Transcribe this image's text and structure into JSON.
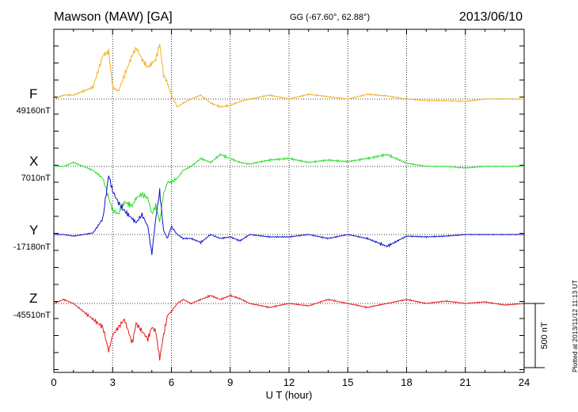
{
  "header": {
    "title": "Mawson (MAW)  [GA]",
    "coords": "GG (-67.60°,  62.88°)",
    "date": "2013/06/10"
  },
  "footer": {
    "plotted": "Plotted at 2013/11/12 11:13 UT"
  },
  "colors": {
    "F": "#f2b01e",
    "X": "#22dd22",
    "Y": "#1010cc",
    "Z": "#e81818",
    "grid": "#000000"
  },
  "chart_data": {
    "type": "line",
    "xlabel": "U T (hour)",
    "xlim": [
      0,
      24
    ],
    "x_ticks": [
      "0",
      "3",
      "6",
      "9",
      "12",
      "15",
      "18",
      "21",
      "24"
    ],
    "scale_bar": "500 nT",
    "series": [
      {
        "name": "F",
        "baseline_label": "49160nT",
        "color": "#f2b01e",
        "x": [
          0,
          0.5,
          1,
          1.5,
          2,
          2.5,
          2.8,
          3,
          3.3,
          3.6,
          4,
          4.2,
          4.5,
          4.8,
          5,
          5.2,
          5.4,
          5.6,
          5.8,
          6,
          6.3,
          6.6,
          7,
          7.5,
          8,
          8.5,
          9,
          9.5,
          10,
          11,
          12,
          13,
          14,
          15,
          16,
          17,
          18,
          19,
          20,
          21,
          22,
          23,
          24
        ],
        "y": [
          0,
          5,
          5,
          10,
          15,
          55,
          60,
          15,
          10,
          30,
          55,
          65,
          50,
          40,
          45,
          50,
          70,
          30,
          20,
          5,
          -10,
          -5,
          0,
          5,
          -5,
          -10,
          -8,
          -3,
          0,
          5,
          0,
          6,
          3,
          0,
          6,
          4,
          0,
          -2,
          -2,
          -3,
          0,
          0,
          0
        ]
      },
      {
        "name": "X",
        "baseline_label": "7010nT",
        "color": "#22dd22",
        "x": [
          0,
          0.5,
          1,
          1.5,
          2,
          2.5,
          2.8,
          3,
          3.3,
          3.6,
          4,
          4.2,
          4.5,
          4.8,
          5,
          5.2,
          5.4,
          5.6,
          5.8,
          6,
          6.3,
          6.6,
          7,
          7.5,
          8,
          8.5,
          9,
          9.5,
          10,
          11,
          12,
          13,
          14,
          15,
          16,
          17,
          18,
          19,
          20,
          21,
          22,
          23,
          24
        ],
        "y": [
          0,
          0,
          5,
          0,
          -5,
          -15,
          -40,
          -55,
          -60,
          -45,
          -50,
          -40,
          -35,
          -40,
          -60,
          -50,
          -70,
          -35,
          -20,
          -20,
          -15,
          -5,
          0,
          10,
          5,
          15,
          10,
          5,
          3,
          8,
          10,
          5,
          8,
          6,
          10,
          15,
          4,
          0,
          0,
          -2,
          0,
          0,
          0
        ]
      },
      {
        "name": "Y",
        "baseline_label": "-17180nT",
        "color": "#1010cc",
        "x": [
          0,
          0.5,
          1,
          1.5,
          2,
          2.5,
          2.8,
          3,
          3.3,
          3.6,
          4,
          4.2,
          4.5,
          4.8,
          5,
          5.2,
          5.4,
          5.6,
          5.8,
          6,
          6.3,
          6.6,
          7,
          7.5,
          8,
          8.5,
          9,
          9.5,
          10,
          11,
          12,
          13,
          14,
          15,
          16,
          17,
          18,
          19,
          20,
          21,
          22,
          23,
          24
        ],
        "y": [
          0,
          0,
          -2,
          0,
          2,
          20,
          75,
          55,
          40,
          30,
          20,
          15,
          25,
          10,
          -25,
          20,
          55,
          5,
          -5,
          10,
          0,
          -5,
          -5,
          -10,
          0,
          -5,
          -3,
          -8,
          0,
          -3,
          -3,
          0,
          -5,
          0,
          -5,
          -15,
          -2,
          -3,
          -2,
          0,
          0,
          0,
          0
        ]
      },
      {
        "name": "Z",
        "baseline_label": "-45510nT",
        "color": "#e81818",
        "x": [
          0,
          0.5,
          1,
          1.5,
          2,
          2.5,
          2.8,
          3,
          3.3,
          3.6,
          4,
          4.2,
          4.5,
          4.8,
          5,
          5.2,
          5.4,
          5.6,
          5.8,
          6,
          6.3,
          6.6,
          7,
          7.5,
          8,
          8.5,
          9,
          9.5,
          10,
          11,
          12,
          13,
          14,
          15,
          16,
          17,
          18,
          19,
          20,
          21,
          22,
          23,
          24
        ],
        "y": [
          0,
          5,
          0,
          -10,
          -20,
          -30,
          -60,
          -40,
          -30,
          -20,
          -50,
          -25,
          -35,
          -45,
          -30,
          -35,
          -70,
          -40,
          -15,
          -10,
          0,
          5,
          0,
          5,
          10,
          5,
          10,
          6,
          0,
          -5,
          0,
          -3,
          5,
          0,
          -5,
          0,
          5,
          0,
          3,
          0,
          2,
          -2,
          0
        ]
      }
    ]
  }
}
